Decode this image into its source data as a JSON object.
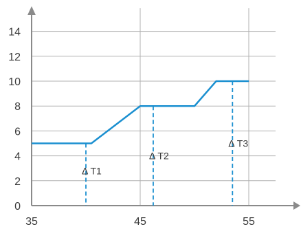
{
  "chart_data": {
    "type": "line",
    "title": "",
    "xlabel": "",
    "ylabel": "",
    "xlim": [
      35,
      58
    ],
    "ylim": [
      0,
      15
    ],
    "grid": true,
    "x_ticks": [
      35,
      45,
      55
    ],
    "y_ticks": [
      0,
      2,
      4,
      6,
      8,
      10,
      12,
      14
    ],
    "x_tick_labels": [
      "35",
      "45",
      "55"
    ],
    "y_tick_labels": [
      "0",
      "2",
      "4",
      "6",
      "8",
      "10",
      "12",
      "14"
    ],
    "series": [
      {
        "points": [
          {
            "x": 35,
            "y": 5
          },
          {
            "x": 40.5,
            "y": 5
          },
          {
            "x": 45,
            "y": 8
          },
          {
            "x": 50,
            "y": 8
          },
          {
            "x": 52,
            "y": 10
          },
          {
            "x": 55,
            "y": 10
          }
        ]
      }
    ],
    "annotations": [
      {
        "label": "Δ T1",
        "x": 40,
        "y_top": 5,
        "label_y": 2.8
      },
      {
        "label": "Δ T2",
        "x": 46.2,
        "y_top": 8,
        "label_y": 4.0
      },
      {
        "label": "Δ T3",
        "x": 53.5,
        "y_top": 10,
        "label_y": 5.0
      }
    ],
    "colors": {
      "line": "#1a8fd0",
      "annotation": "#1a8fd0",
      "axis": "#8a8a8a",
      "grid": "#b0b0b0"
    }
  }
}
